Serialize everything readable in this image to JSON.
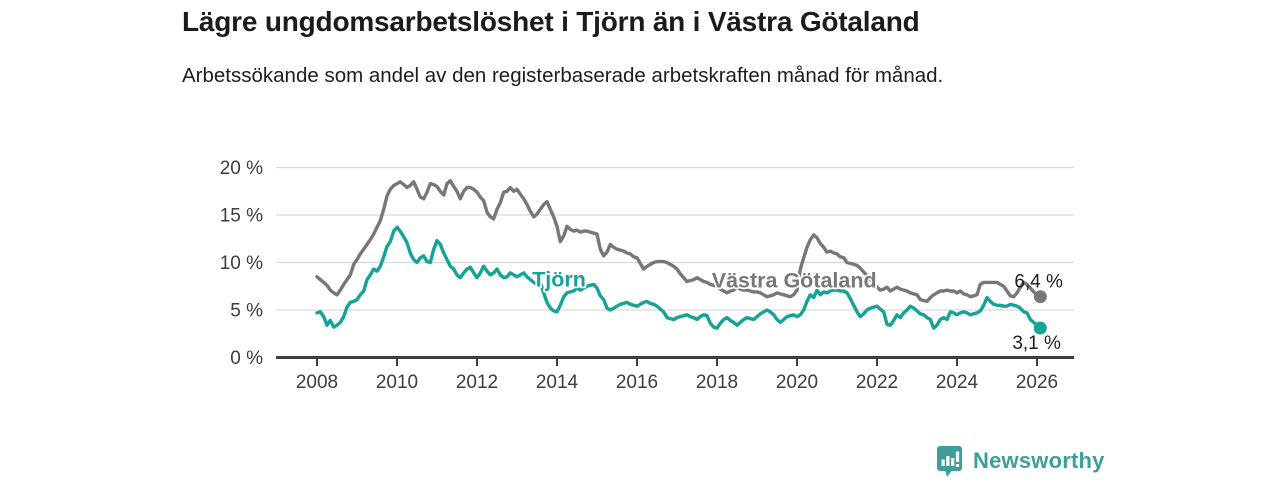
{
  "header": {
    "title": "Lägre ungdomsarbetslöshet i Tjörn än i Västra Götaland",
    "subtitle": "Arbetssökande som andel av den registerbaserade arbetskraften månad för månad."
  },
  "chart_data": {
    "type": "line",
    "title": "Lägre ungdomsarbetslöshet i Tjörn än i Västra Götaland",
    "xlabel": "",
    "ylabel": "",
    "x_start": 2008.0,
    "x_step_years": 0.083333,
    "xlim": [
      2006.9,
      2027.0
    ],
    "ylim": [
      0,
      20
    ],
    "grid": "horizontal",
    "legend_position": "inline-labels",
    "yticks": [
      0,
      5,
      10,
      15,
      20
    ],
    "ytick_labels": [
      "0 %",
      "5 %",
      "10 %",
      "15 %",
      "20 %"
    ],
    "xticks": [
      2008,
      2010,
      2012,
      2014,
      2016,
      2018,
      2020,
      2022,
      2024,
      2026
    ],
    "xtick_labels": [
      "2008",
      "2010",
      "2012",
      "2014",
      "2016",
      "2018",
      "2020",
      "2022",
      "2024",
      "2026"
    ],
    "series": [
      {
        "name": "Västra Götaland",
        "slug": "vastra-gotaland",
        "color": "#77777b",
        "end_label": "6,4 %",
        "last_value": 6.4,
        "label_anchor": {
          "year": 2019.93,
          "pct": 8.1
        },
        "values": [
          8.5,
          8.2,
          7.9,
          7.6,
          7.1,
          6.8,
          6.6,
          7.1,
          7.7,
          8.2,
          8.7,
          9.8,
          10.3,
          10.9,
          11.4,
          11.9,
          12.4,
          13,
          13.7,
          14.4,
          15.6,
          17,
          17.7,
          18.1,
          18.3,
          18.5,
          18.2,
          17.9,
          18.1,
          18.5,
          17.7,
          16.9,
          16.7,
          17.4,
          18.3,
          18.2,
          18,
          17.5,
          17.1,
          18.3,
          18.6,
          18,
          17.5,
          16.7,
          17.5,
          17.9,
          17.9,
          17.7,
          17.4,
          16.9,
          16.5,
          15.3,
          14.8,
          14.6,
          15.6,
          16.3,
          17.4,
          17.5,
          17.9,
          17.5,
          17.7,
          17.2,
          16.7,
          16.1,
          15.4,
          14.8,
          15.1,
          15.6,
          16.1,
          16.4,
          15.6,
          14.8,
          13.8,
          12.2,
          12.8,
          13.8,
          13.5,
          13.3,
          13.4,
          13.2,
          13.3,
          13.3,
          13.2,
          13.1,
          13,
          11.4,
          10.7,
          11.1,
          11.9,
          11.6,
          11.4,
          11.3,
          11.2,
          11,
          10.9,
          10.6,
          10.5,
          9.9,
          9.3,
          9.6,
          9.8,
          10,
          10.1,
          10.1,
          10.1,
          10,
          9.8,
          9.6,
          9.3,
          8.8,
          8.4,
          8,
          8.1,
          8.2,
          8.4,
          8.2,
          8,
          7.9,
          7.7,
          7.6,
          7.5,
          7.2,
          7,
          6.8,
          7,
          7.1,
          7.4,
          7.2,
          7.1,
          7.1,
          7,
          6.9,
          6.9,
          6.8,
          6.6,
          6.4,
          6.5,
          6.6,
          6.8,
          6.7,
          6.6,
          6.5,
          6.4,
          6.6,
          7.1,
          9.3,
          10.5,
          11.6,
          12.4,
          12.9,
          12.6,
          12,
          11.6,
          11.1,
          11.2,
          11,
          10.9,
          10.6,
          10.5,
          10,
          9.9,
          9.8,
          9.7,
          9.4,
          9,
          8.6,
          8.2,
          7.8,
          7.4,
          7.1,
          7.2,
          7.4,
          7,
          7.2,
          7.4,
          7.2,
          7.1,
          7,
          6.8,
          6.7,
          6.6,
          6.1,
          6,
          5.9,
          6.3,
          6.6,
          6.8,
          7,
          7,
          7.1,
          7,
          7,
          6.8,
          7,
          6.7,
          6.6,
          6.4,
          6.5,
          6.6,
          7.7,
          7.9,
          7.9,
          7.9,
          7.9,
          7.9,
          7.7,
          7.5,
          7,
          6.5,
          6.4,
          6.8,
          7.4,
          7.9,
          7.7,
          7.3,
          6.9,
          6.6,
          6.4
        ]
      },
      {
        "name": "Tjörn",
        "slug": "tjorn",
        "color": "#14a394",
        "end_label": "3,1 %",
        "last_value": 3.1,
        "label_anchor": {
          "year": 2014.05,
          "pct": 8.2
        },
        "values": [
          4.7,
          4.8,
          4.3,
          3.4,
          3.9,
          3.2,
          3.4,
          3.7,
          4.3,
          5.3,
          5.8,
          5.9,
          6.1,
          6.6,
          7,
          8.2,
          8.7,
          9.3,
          9.1,
          9.6,
          10.6,
          11.7,
          12.2,
          13.3,
          13.7,
          13.3,
          12.7,
          12.1,
          11,
          10.3,
          10,
          10.5,
          10.7,
          10.1,
          10,
          11.4,
          12.3,
          11.9,
          11,
          10.3,
          9.6,
          9.3,
          8.7,
          8.4,
          8.9,
          9.3,
          9.5,
          8.9,
          8.4,
          8.9,
          9.6,
          9.1,
          8.7,
          8.9,
          9.3,
          8.7,
          8.4,
          8.5,
          8.9,
          8.7,
          8.5,
          8.7,
          8.9,
          8.5,
          8.2,
          7.9,
          7.7,
          7.9,
          6.8,
          5.8,
          5.2,
          4.9,
          4.8,
          5.5,
          6.4,
          6.8,
          6.9,
          7,
          7.3,
          7.1,
          7.3,
          7.5,
          7.6,
          7.7,
          7.3,
          6.5,
          6.1,
          5.2,
          5,
          5.2,
          5.4,
          5.6,
          5.7,
          5.8,
          5.6,
          5.5,
          5.4,
          5.6,
          5.8,
          5.9,
          5.7,
          5.6,
          5.4,
          5.1,
          4.8,
          4.2,
          4.1,
          4,
          4.2,
          4.3,
          4.4,
          4.5,
          4.3,
          4.2,
          4,
          4.3,
          4.5,
          4.4,
          3.6,
          3.2,
          3.1,
          3.6,
          4,
          4.2,
          3.9,
          3.7,
          3.4,
          3.7,
          4,
          4.2,
          4.1,
          4,
          4.3,
          4.6,
          4.8,
          5,
          4.8,
          4.5,
          4,
          3.7,
          4,
          4.3,
          4.4,
          4.5,
          4.3,
          4.5,
          5,
          5.9,
          6.6,
          6.3,
          7.1,
          6.6,
          6.9,
          6.8,
          7,
          7.1,
          7.1,
          7,
          7,
          6.8,
          6.2,
          5.5,
          4.8,
          4.3,
          4.6,
          5,
          5.2,
          5.3,
          5.4,
          5.1,
          4.8,
          3.5,
          3.4,
          3.9,
          4.5,
          4.2,
          4.7,
          5,
          5.4,
          5.2,
          4.9,
          4.6,
          4.5,
          4.2,
          4,
          3.1,
          3.4,
          4,
          4.2,
          4,
          4.8,
          4.7,
          4.5,
          4.7,
          4.8,
          4.7,
          4.5,
          4.6,
          4.7,
          4.9,
          5.5,
          6.3,
          5.9,
          5.6,
          5.5,
          5.5,
          5.4,
          5.4,
          5.6,
          5.5,
          5.4,
          5.2,
          4.8,
          4.7,
          4,
          3.7,
          3.4,
          3.1
        ]
      }
    ]
  },
  "footer": {
    "brand": "Newsworthy"
  },
  "colors": {
    "background": "#ffffff",
    "title_text": "#1b1b19",
    "body_text": "#1d1d1b",
    "axis": "#3d3d3c",
    "tick_text": "#3d3d3c",
    "gridline": "#dadada",
    "series_vastra_gotaland": "#77777b",
    "series_tjorn": "#14a394",
    "brand_teal": "#3f9e99"
  }
}
